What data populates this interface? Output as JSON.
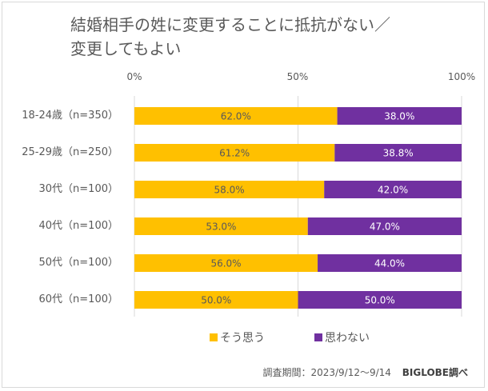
{
  "chart_data": {
    "type": "bar",
    "orientation": "horizontal",
    "stacked": true,
    "title": "結婚相手の姓に変更することに抵抗がない／変更してもよい",
    "title_lines": [
      "結婚相手の姓に変更することに抵抗がない／",
      "変更してもよい"
    ],
    "xlabel": "",
    "ylabel": "",
    "xlim": [
      0,
      100
    ],
    "x_ticks": [
      "0%",
      "50%",
      "100%"
    ],
    "grid": true,
    "legend_position": "bottom",
    "categories": [
      "18-24歳（n=350）",
      "25-29歳（n=250）",
      "30代（n=100）",
      "40代（n=100）",
      "50代（n=100）",
      "60代（n=100）"
    ],
    "series": [
      {
        "name": "そう思う",
        "color": "#FFC000",
        "label_color": "#595959",
        "values": [
          62.0,
          61.2,
          58.0,
          53.0,
          56.0,
          50.0
        ],
        "labels": [
          "62.0%",
          "61.2%",
          "58.0%",
          "53.0%",
          "56.0%",
          "50.0%"
        ]
      },
      {
        "name": "思わない",
        "color": "#7030A0",
        "label_color": "#ffffff",
        "values": [
          38.0,
          38.8,
          42.0,
          47.0,
          44.0,
          50.0
        ],
        "labels": [
          "38.0%",
          "38.8%",
          "42.0%",
          "47.0%",
          "44.0%",
          "50.0%"
        ]
      }
    ]
  },
  "footer": {
    "period": "調査期間：2023/9/12～9/14",
    "source": "BIGLOBE調べ"
  }
}
